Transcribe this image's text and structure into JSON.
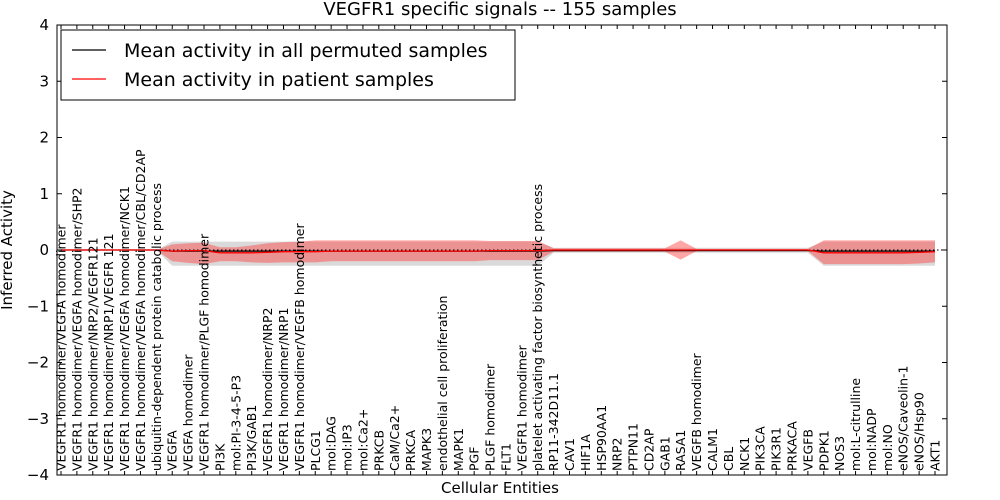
{
  "chart_data": {
    "type": "line",
    "title": "VEGFR1 specific signals -- 155 samples",
    "xlabel": "Cellular Entities",
    "ylabel": "Inferred Activity",
    "ylim": [
      -4,
      4
    ],
    "yticks": [
      "4",
      "3",
      "2",
      "1",
      "0",
      "−1",
      "−2",
      "−3",
      "−4"
    ],
    "ytick_values": [
      4,
      3,
      2,
      1,
      0,
      -1,
      -2,
      -3,
      -4
    ],
    "legend": {
      "location": "top-left",
      "entries": [
        {
          "label": "Mean activity in all permuted samples",
          "color": "#000000"
        },
        {
          "label": "Mean activity in patient samples",
          "color": "#ff0000"
        }
      ]
    },
    "categories": [
      "VEGFR1 homodimer/VEGFA homodimer",
      "VEGFR1 homodimer/VEGFA homodimer/SHP2",
      "VEGFR1 homodimer/NRP2/VEGFR121",
      "VEGFR1 homodimer/NRP1/VEGFR 121",
      "VEGFR1 homodimer/VEGFA homodimer/NCK1",
      "VEGFR1 homodimer/VEGFA homodimer/CBL/CD2AP",
      "ubiquitin-dependent protein catabolic process",
      "VEGFA",
      "VEGFA homodimer",
      "VEGFR1 homodimer/PLGF homodimer",
      "PI3K",
      "mol:PI-3-4-5-P3",
      "PI3K/GAB1",
      "VEGFR1 homodimer/NRP2",
      "VEGFR1 homodimer/NRP1",
      "VEGFR1 homodimer/VEGFB homodimer",
      "PLCG1",
      "mol:DAG",
      "mol:IP3",
      "mol:Ca2+",
      "PRKCB",
      "CaM/Ca2+",
      "PRKCA",
      "MAPK3",
      "endothelial cell proliferation",
      "MAPK1",
      "PGF",
      "PLGF homodimer",
      "FLT1",
      "VEGFR1 homodimer",
      "platelet activating factor biosynthetic process",
      "RP11-342D11.1",
      "CAV1",
      "HIF1A",
      "HSP90AA1",
      "NRP2",
      "PTPN11",
      "CD2AP",
      "GAB1",
      "RASA1",
      "VEGFB homodimer",
      "CALM1",
      "CBL",
      "NCK1",
      "PIK3CA",
      "PIK3R1",
      "PRKACA",
      "VEGFB",
      "PDPK1",
      "NOS3",
      "mol:L-citrulline",
      "mol:NADP",
      "mol:NO",
      "eNOS/Caveolin-1",
      "eNOS/Hsp90",
      "AKT1"
    ],
    "series": [
      {
        "name": "Mean activity in patient samples",
        "color": "#ff0000",
        "values": [
          0,
          0,
          0,
          0,
          0,
          0,
          0,
          -0.02,
          -0.01,
          -0.01,
          -0.05,
          -0.05,
          -0.05,
          -0.04,
          -0.03,
          -0.03,
          -0.03,
          -0.02,
          -0.02,
          -0.02,
          -0.02,
          -0.02,
          -0.02,
          -0.02,
          -0.02,
          -0.02,
          -0.02,
          -0.01,
          -0.01,
          -0.01,
          -0.01,
          0,
          0,
          0,
          0,
          0,
          0,
          0,
          0,
          0,
          0,
          0,
          0,
          0,
          0,
          0,
          0,
          0,
          -0.05,
          -0.05,
          -0.05,
          -0.05,
          -0.05,
          -0.05,
          -0.04,
          -0.03
        ],
        "upper": [
          0,
          0,
          0,
          0,
          0,
          0,
          0,
          0.1,
          0.12,
          0.13,
          0.05,
          0.05,
          0.08,
          0.12,
          0.14,
          0.15,
          0.17,
          0.17,
          0.17,
          0.17,
          0.17,
          0.17,
          0.17,
          0.17,
          0.17,
          0.17,
          0.17,
          0.16,
          0.16,
          0.16,
          0.16,
          0.03,
          0.03,
          0.03,
          0.03,
          0.03,
          0.03,
          0.03,
          0.03,
          0.17,
          0.02,
          0.02,
          0.02,
          0.02,
          0.02,
          0.02,
          0.02,
          0.02,
          0.17,
          0.17,
          0.17,
          0.17,
          0.17,
          0.17,
          0.17,
          0.17
        ],
        "lower": [
          0,
          0,
          0,
          0,
          0,
          0,
          0,
          -0.2,
          -0.23,
          -0.25,
          -0.2,
          -0.2,
          -0.22,
          -0.23,
          -0.22,
          -0.22,
          -0.22,
          -0.2,
          -0.2,
          -0.2,
          -0.2,
          -0.2,
          -0.2,
          -0.2,
          -0.2,
          -0.2,
          -0.2,
          -0.18,
          -0.18,
          -0.18,
          -0.18,
          -0.03,
          -0.03,
          -0.03,
          -0.03,
          -0.03,
          -0.03,
          -0.03,
          -0.03,
          -0.17,
          -0.02,
          -0.02,
          -0.02,
          -0.02,
          -0.02,
          -0.02,
          -0.02,
          -0.02,
          -0.25,
          -0.25,
          -0.25,
          -0.25,
          -0.25,
          -0.25,
          -0.24,
          -0.22
        ]
      },
      {
        "name": "Mean activity in all permuted samples",
        "color": "#000000",
        "values": [
          0,
          0,
          0,
          0,
          0,
          0,
          0,
          -0.02,
          -0.02,
          -0.02,
          -0.02,
          -0.02,
          -0.02,
          -0.02,
          -0.02,
          -0.02,
          -0.02,
          -0.02,
          -0.02,
          -0.02,
          -0.02,
          -0.02,
          -0.02,
          -0.02,
          -0.02,
          -0.02,
          -0.02,
          -0.02,
          -0.02,
          -0.02,
          -0.02,
          -0.01,
          -0.01,
          -0.01,
          -0.01,
          -0.01,
          -0.01,
          -0.01,
          -0.01,
          -0.01,
          -0.01,
          -0.01,
          -0.01,
          -0.01,
          -0.01,
          -0.01,
          -0.01,
          -0.01,
          -0.02,
          -0.02,
          -0.02,
          -0.02,
          -0.02,
          -0.02,
          -0.02,
          -0.02
        ],
        "upper": [
          0,
          0,
          0,
          0,
          0,
          0,
          0,
          0.15,
          0.15,
          0.15,
          0.15,
          0.15,
          0.15,
          0.15,
          0.15,
          0.15,
          0.15,
          0.15,
          0.15,
          0.15,
          0.15,
          0.15,
          0.15,
          0.15,
          0.15,
          0.15,
          0.15,
          0.15,
          0.15,
          0.15,
          0.15,
          0.04,
          0.04,
          0.04,
          0.04,
          0.04,
          0.04,
          0.04,
          0.04,
          0.04,
          0.04,
          0.04,
          0.04,
          0.04,
          0.04,
          0.04,
          0.04,
          0.04,
          0.15,
          0.15,
          0.15,
          0.15,
          0.15,
          0.15,
          0.15,
          0.15
        ],
        "lower": [
          0,
          0,
          0,
          0,
          0,
          0,
          0,
          -0.28,
          -0.28,
          -0.28,
          -0.28,
          -0.28,
          -0.28,
          -0.28,
          -0.28,
          -0.28,
          -0.28,
          -0.28,
          -0.28,
          -0.28,
          -0.28,
          -0.28,
          -0.28,
          -0.28,
          -0.28,
          -0.28,
          -0.28,
          -0.28,
          -0.28,
          -0.28,
          -0.28,
          -0.05,
          -0.05,
          -0.05,
          -0.05,
          -0.05,
          -0.05,
          -0.05,
          -0.05,
          -0.05,
          -0.05,
          -0.05,
          -0.05,
          -0.05,
          -0.05,
          -0.05,
          -0.05,
          -0.05,
          -0.28,
          -0.28,
          -0.28,
          -0.28,
          -0.28,
          -0.28,
          -0.28,
          -0.28
        ]
      }
    ]
  }
}
